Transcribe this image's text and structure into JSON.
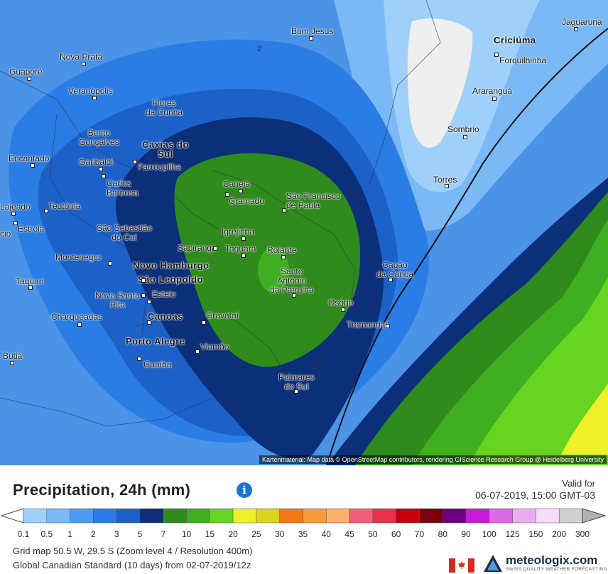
{
  "map": {
    "attribution": "Kartenmaterial: Map data © OpenStreetMap contributors, rendering GIScience Research Group @ Heidelberg University",
    "contour_label": "2",
    "cities": [
      {
        "name": "Bom Jesus"
      },
      {
        "name": "Criciúma"
      },
      {
        "name": "Jaguaruna"
      },
      {
        "name": "Forquilhinha"
      },
      {
        "name": "Nova Prata"
      },
      {
        "name": "Guaporé"
      },
      {
        "name": "Veranópolis"
      },
      {
        "name": "Flores\nda Cunha"
      },
      {
        "name": "Araranguá"
      },
      {
        "name": "Bento\nGonçalves"
      },
      {
        "name": "Caxias do\nSul"
      },
      {
        "name": "Sombrio"
      },
      {
        "name": "Encantado"
      },
      {
        "name": "Garibaldi"
      },
      {
        "name": "Farroupilha"
      },
      {
        "name": "Torres"
      },
      {
        "name": "Carlos\nBarbosa"
      },
      {
        "name": "Canela"
      },
      {
        "name": "São Francisco\nde Paula"
      },
      {
        "name": "Gramado"
      },
      {
        "name": "Lajeado"
      },
      {
        "name": "Teutônia"
      },
      {
        "name": "Estrela"
      },
      {
        "name": "São Sebastião\ndo Caí"
      },
      {
        "name": "Igrejinha"
      },
      {
        "name": "Sapiranga"
      },
      {
        "name": "Taquara"
      },
      {
        "name": "Rolante"
      },
      {
        "name": "Montenegro"
      },
      {
        "name": "Capão\nda Canoa"
      },
      {
        "name": "Novo Hamburgo"
      },
      {
        "name": "Santo\nAntônio\nda Patrulha"
      },
      {
        "name": "São Leopoldo"
      },
      {
        "name": "Taquari"
      },
      {
        "name": "Nova Santa\nRita"
      },
      {
        "name": "Esteio"
      },
      {
        "name": "Osório"
      },
      {
        "name": "Charqueadas"
      },
      {
        "name": "Canoas"
      },
      {
        "name": "Gravataí"
      },
      {
        "name": "Tramandaí"
      },
      {
        "name": "Porto Alegre"
      },
      {
        "name": "Viamão"
      },
      {
        "name": "Butiá"
      },
      {
        "name": "Guaíba"
      },
      {
        "name": "Palmares\ndo Sul"
      },
      {
        "name": "cio"
      }
    ]
  },
  "legend": {
    "title": "Precipitation, 24h (mm)",
    "info_icon": "info-icon",
    "valid_label": "Valid for",
    "valid_value": "06-07-2019, 15:00 GMT-03",
    "ticks": [
      "0.1",
      "0.5",
      "1",
      "2",
      "3",
      "5",
      "7",
      "10",
      "15",
      "20",
      "25",
      "30",
      "35",
      "40",
      "45",
      "50",
      "60",
      "70",
      "80",
      "90",
      "100",
      "125",
      "150",
      "200",
      "300"
    ],
    "colors": [
      "#9fd0fb",
      "#7ab8f6",
      "#4d9bf0",
      "#2b7de6",
      "#1c61c8",
      "#0c2f7a",
      "#2e8b1c",
      "#3fae20",
      "#67d421",
      "#f0f02a",
      "#dcd41c",
      "#f27a14",
      "#f79a3a",
      "#fbb06a",
      "#f25e7a",
      "#e8304a",
      "#c4000e",
      "#7a0010",
      "#6a0080",
      "#c81ad8",
      "#dc6ae8",
      "#ecaaf0",
      "#f6dcf8",
      "#d0d0d0",
      "#b0b0b0"
    ],
    "grid_info": "Grid map 50.5 W, 29.5 S (Zoom level 4 / Resolution 400m)",
    "model_info": "Global Canadian Standard (10 days) from 02-07-2019/12z",
    "brand": "meteologix.com",
    "tagline": "SWISS QUALITY WEATHER FORECASTING"
  }
}
